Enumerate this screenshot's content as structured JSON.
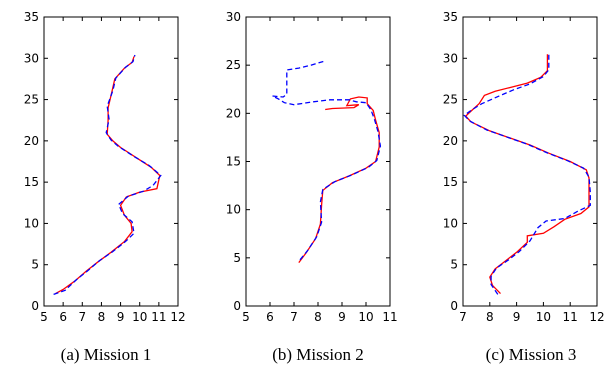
{
  "chart_data": [
    {
      "type": "line",
      "caption": "(a) Mission 1",
      "xlim": [
        5,
        12
      ],
      "ylim": [
        0,
        35
      ],
      "xticks": [
        "5",
        "6",
        "7",
        "8",
        "9",
        "10",
        "11",
        "12"
      ],
      "yticks": [
        "0",
        "5",
        "10",
        "15",
        "20",
        "25",
        "30",
        "35"
      ],
      "series": [
        {
          "color": "#ff0000",
          "dash": "solid",
          "points": [
            [
              5.6,
              1.5
            ],
            [
              6.0,
              2.0
            ],
            [
              6.6,
              3.0
            ],
            [
              7.2,
              4.2
            ],
            [
              7.8,
              5.3
            ],
            [
              8.5,
              6.5
            ],
            [
              9.2,
              7.8
            ],
            [
              9.6,
              9.0
            ],
            [
              9.55,
              10.0
            ],
            [
              9.2,
              11.0
            ],
            [
              9.0,
              12.2
            ],
            [
              9.3,
              13.2
            ],
            [
              10.0,
              13.8
            ],
            [
              10.9,
              14.2
            ],
            [
              11.05,
              15.8
            ],
            [
              10.6,
              16.8
            ],
            [
              9.8,
              18.0
            ],
            [
              9.0,
              19.2
            ],
            [
              8.6,
              20.0
            ],
            [
              8.3,
              20.8
            ],
            [
              8.35,
              22.5
            ],
            [
              8.35,
              24.0
            ],
            [
              8.55,
              26.0
            ],
            [
              8.7,
              27.5
            ],
            [
              9.2,
              28.8
            ],
            [
              9.6,
              29.5
            ],
            [
              9.7,
              30.2
            ]
          ]
        },
        {
          "color": "#0000ff",
          "dash": "dashed",
          "points": [
            [
              5.5,
              1.4
            ],
            [
              6.1,
              1.9
            ],
            [
              6.7,
              3.2
            ],
            [
              7.3,
              4.3
            ],
            [
              7.9,
              5.5
            ],
            [
              8.6,
              6.6
            ],
            [
              9.3,
              7.9
            ],
            [
              9.7,
              8.8
            ],
            [
              9.6,
              10.2
            ],
            [
              9.1,
              11.2
            ],
            [
              8.9,
              12.3
            ],
            [
              9.4,
              13.3
            ],
            [
              10.2,
              13.9
            ],
            [
              10.7,
              14.6
            ],
            [
              11.1,
              15.8
            ],
            [
              10.5,
              17.0
            ],
            [
              9.7,
              18.1
            ],
            [
              8.9,
              19.3
            ],
            [
              8.5,
              20.1
            ],
            [
              8.25,
              21.0
            ],
            [
              8.4,
              22.6
            ],
            [
              8.3,
              24.2
            ],
            [
              8.6,
              26.1
            ],
            [
              8.75,
              27.6
            ],
            [
              9.25,
              28.9
            ],
            [
              9.65,
              29.6
            ],
            [
              9.75,
              30.4
            ]
          ]
        }
      ]
    },
    {
      "type": "line",
      "caption": "(b) Mission 2",
      "xlim": [
        5,
        11
      ],
      "ylim": [
        0,
        30
      ],
      "xticks": [
        "5",
        "6",
        "7",
        "8",
        "9",
        "10",
        "11"
      ],
      "yticks": [
        "0",
        "5",
        "10",
        "15",
        "20",
        "25",
        "30"
      ],
      "series": [
        {
          "color": "#ff0000",
          "dash": "solid",
          "points": [
            [
              7.2,
              4.5
            ],
            [
              7.5,
              5.5
            ],
            [
              7.9,
              7.0
            ],
            [
              8.1,
              8.5
            ],
            [
              8.15,
              10.5
            ],
            [
              8.2,
              12.0
            ],
            [
              8.6,
              12.8
            ],
            [
              9.3,
              13.5
            ],
            [
              10.0,
              14.3
            ],
            [
              10.4,
              15.0
            ],
            [
              10.55,
              16.5
            ],
            [
              10.55,
              18.0
            ],
            [
              10.4,
              19.3
            ],
            [
              10.3,
              20.3
            ],
            [
              10.05,
              21.0
            ],
            [
              10.05,
              21.6
            ],
            [
              9.7,
              21.7
            ],
            [
              9.35,
              21.5
            ],
            [
              9.2,
              20.8
            ],
            [
              9.7,
              20.9
            ],
            [
              9.5,
              20.6
            ],
            [
              8.6,
              20.5
            ],
            [
              8.3,
              20.4
            ]
          ]
        },
        {
          "color": "#0000ff",
          "dash": "dashed",
          "points": [
            [
              7.25,
              4.8
            ],
            [
              7.55,
              5.7
            ],
            [
              7.95,
              7.2
            ],
            [
              8.15,
              8.7
            ],
            [
              8.1,
              10.8
            ],
            [
              8.2,
              12.1
            ],
            [
              8.7,
              12.9
            ],
            [
              9.4,
              13.6
            ],
            [
              10.1,
              14.4
            ],
            [
              10.45,
              15.1
            ],
            [
              10.6,
              16.6
            ],
            [
              10.5,
              18.1
            ],
            [
              10.35,
              19.4
            ],
            [
              10.2,
              20.4
            ],
            [
              10.0,
              21.1
            ],
            [
              9.6,
              21.2
            ],
            [
              9.3,
              21.4
            ],
            [
              8.5,
              21.4
            ],
            [
              7.8,
              21.2
            ],
            [
              7.0,
              20.9
            ],
            [
              6.6,
              21.1
            ],
            [
              6.35,
              21.5
            ],
            [
              6.1,
              21.8
            ],
            [
              6.55,
              21.7
            ],
            [
              6.7,
              22.0
            ],
            [
              6.7,
              24.5
            ],
            [
              7.2,
              24.7
            ],
            [
              7.7,
              25.0
            ],
            [
              8.25,
              25.4
            ]
          ]
        }
      ]
    },
    {
      "type": "line",
      "caption": "(c) Mission 3",
      "xlim": [
        7,
        12
      ],
      "ylim": [
        0,
        35
      ],
      "xticks": [
        "7",
        "8",
        "9",
        "10",
        "11",
        "12"
      ],
      "yticks": [
        "0",
        "5",
        "10",
        "15",
        "20",
        "25",
        "30",
        "35"
      ],
      "series": [
        {
          "color": "#ff0000",
          "dash": "solid",
          "points": [
            [
              8.4,
              1.5
            ],
            [
              8.1,
              2.5
            ],
            [
              8.0,
              3.5
            ],
            [
              8.2,
              4.5
            ],
            [
              8.6,
              5.5
            ],
            [
              9.0,
              6.5
            ],
            [
              9.4,
              7.7
            ],
            [
              9.4,
              8.5
            ],
            [
              10.0,
              8.8
            ],
            [
              10.4,
              9.6
            ],
            [
              10.8,
              10.5
            ],
            [
              11.4,
              11.2
            ],
            [
              11.7,
              12.0
            ],
            [
              11.7,
              13.5
            ],
            [
              11.7,
              15.5
            ],
            [
              11.6,
              16.5
            ],
            [
              11.0,
              17.5
            ],
            [
              10.2,
              18.5
            ],
            [
              9.5,
              19.5
            ],
            [
              8.8,
              20.3
            ],
            [
              8.0,
              21.2
            ],
            [
              7.3,
              22.3
            ],
            [
              7.1,
              23.0
            ],
            [
              7.3,
              23.6
            ],
            [
              7.6,
              24.5
            ],
            [
              7.8,
              25.5
            ],
            [
              8.2,
              26.0
            ],
            [
              8.8,
              26.5
            ],
            [
              9.4,
              27.0
            ],
            [
              9.9,
              27.7
            ],
            [
              10.15,
              28.5
            ],
            [
              10.15,
              29.5
            ],
            [
              10.15,
              30.5
            ]
          ]
        },
        {
          "color": "#0000ff",
          "dash": "dashed",
          "points": [
            [
              8.3,
              1.4
            ],
            [
              8.05,
              2.6
            ],
            [
              8.05,
              3.6
            ],
            [
              8.25,
              4.6
            ],
            [
              8.7,
              5.6
            ],
            [
              9.1,
              6.6
            ],
            [
              9.5,
              7.9
            ],
            [
              9.8,
              9.5
            ],
            [
              10.1,
              10.3
            ],
            [
              10.8,
              10.6
            ],
            [
              11.3,
              11.5
            ],
            [
              11.75,
              12.2
            ],
            [
              11.75,
              13.8
            ],
            [
              11.7,
              15.6
            ],
            [
              11.5,
              16.7
            ],
            [
              10.9,
              17.6
            ],
            [
              10.1,
              18.6
            ],
            [
              9.4,
              19.6
            ],
            [
              8.7,
              20.4
            ],
            [
              7.9,
              21.3
            ],
            [
              7.25,
              22.4
            ],
            [
              7.05,
              23.1
            ],
            [
              7.35,
              23.8
            ],
            [
              7.7,
              24.5
            ],
            [
              8.4,
              25.5
            ],
            [
              8.9,
              26.2
            ],
            [
              9.5,
              26.9
            ],
            [
              10.0,
              27.8
            ],
            [
              10.2,
              28.6
            ],
            [
              10.2,
              29.6
            ],
            [
              10.2,
              30.5
            ]
          ]
        }
      ]
    }
  ]
}
